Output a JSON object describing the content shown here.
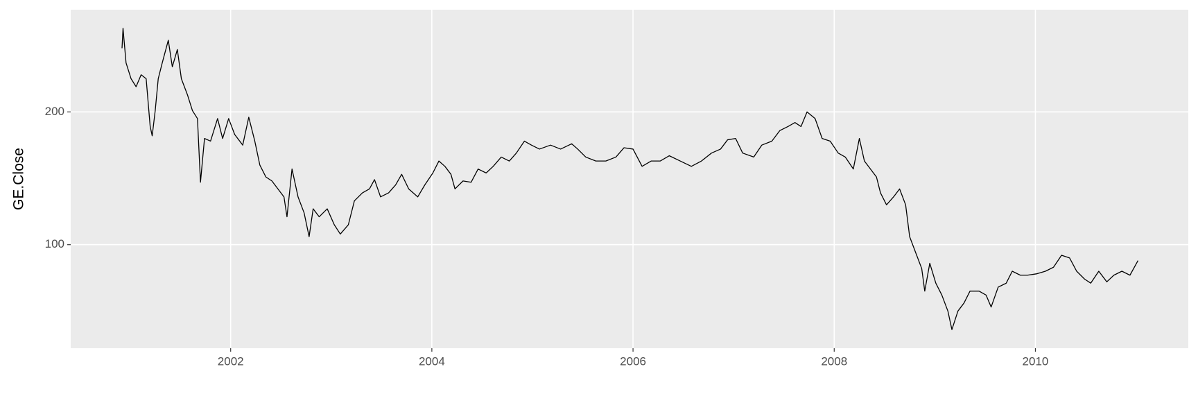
{
  "chart_data": {
    "type": "line",
    "y_label": "GE.Close",
    "x": [
      2000.92,
      2000.93,
      2000.96,
      2001.01,
      2001.06,
      2001.11,
      2001.16,
      2001.2,
      2001.22,
      2001.25,
      2001.28,
      2001.32,
      2001.38,
      2001.42,
      2001.47,
      2001.51,
      2001.57,
      2001.62,
      2001.67,
      2001.7,
      2001.74,
      2001.8,
      2001.87,
      2001.92,
      2001.98,
      2002.04,
      2002.12,
      2002.18,
      2002.24,
      2002.29,
      2002.35,
      2002.41,
      2002.47,
      2002.53,
      2002.56,
      2002.61,
      2002.67,
      2002.73,
      2002.78,
      2002.82,
      2002.88,
      2002.96,
      2003.03,
      2003.09,
      2003.17,
      2003.23,
      2003.31,
      2003.38,
      2003.43,
      2003.49,
      2003.57,
      2003.64,
      2003.7,
      2003.77,
      2003.86,
      2003.93,
      2004.01,
      2004.07,
      2004.13,
      2004.19,
      2004.23,
      2004.31,
      2004.39,
      2004.46,
      2004.54,
      2004.61,
      2004.69,
      2004.77,
      2004.84,
      2004.92,
      2004.99,
      2005.07,
      2005.18,
      2005.28,
      2005.39,
      2005.45,
      2005.53,
      2005.63,
      2005.73,
      2005.83,
      2005.91,
      2006.0,
      2006.09,
      2006.18,
      2006.27,
      2006.36,
      2006.47,
      2006.58,
      2006.68,
      2006.78,
      2006.87,
      2006.94,
      2007.02,
      2007.09,
      2007.2,
      2007.28,
      2007.38,
      2007.46,
      2007.54,
      2007.61,
      2007.67,
      2007.73,
      2007.81,
      2007.88,
      2007.96,
      2008.04,
      2008.11,
      2008.19,
      2008.25,
      2008.3,
      2008.36,
      2008.42,
      2008.46,
      2008.52,
      2008.59,
      2008.65,
      2008.71,
      2008.75,
      2008.81,
      2008.87,
      2008.9,
      2008.95,
      2009.01,
      2009.07,
      2009.13,
      2009.17,
      2009.23,
      2009.29,
      2009.35,
      2009.44,
      2009.51,
      2009.56,
      2009.63,
      2009.71,
      2009.77,
      2009.85,
      2009.92,
      2010.01,
      2010.1,
      2010.18,
      2010.26,
      2010.34,
      2010.41,
      2010.49,
      2010.55,
      2010.63,
      2010.71,
      2010.78,
      2010.86,
      2010.94,
      2011.02
    ],
    "values": [
      248,
      263,
      237,
      225,
      219,
      228,
      225,
      189,
      182,
      201,
      225,
      237,
      254,
      234,
      247,
      225,
      213,
      201,
      195,
      147,
      180,
      178,
      195,
      180,
      195,
      183,
      175,
      196,
      178,
      160,
      151,
      148,
      142,
      136,
      121,
      157,
      136,
      124,
      106,
      127,
      121,
      127,
      115,
      108,
      115,
      133,
      139,
      142,
      149,
      136,
      139,
      145,
      153,
      142,
      136,
      145,
      154,
      163,
      159,
      153,
      142,
      148,
      147,
      157,
      154,
      159,
      166,
      163,
      169,
      178,
      175,
      172,
      175,
      172,
      176,
      172,
      166,
      163,
      163,
      166,
      173,
      172,
      159,
      163,
      163,
      167,
      163,
      159,
      163,
      169,
      172,
      179,
      180,
      169,
      166,
      175,
      178,
      186,
      189,
      192,
      189,
      200,
      195,
      180,
      178,
      169,
      166,
      157,
      180,
      163,
      157,
      151,
      139,
      130,
      136,
      142,
      130,
      106,
      94,
      82,
      65,
      86,
      71,
      62,
      50,
      36,
      50,
      56,
      65,
      65,
      62,
      53,
      68,
      71,
      80,
      77,
      77,
      78,
      80,
      83,
      92,
      90,
      80,
      74,
      71,
      80,
      72,
      77,
      80,
      77,
      88
    ],
    "color": "#000000",
    "xlim": [
      2000.41,
      2011.52
    ],
    "xticks": [
      2002,
      2004,
      2006,
      2008,
      2010
    ],
    "ylim": [
      22,
      277
    ],
    "yticks": [
      100,
      200
    ],
    "grid": true
  }
}
